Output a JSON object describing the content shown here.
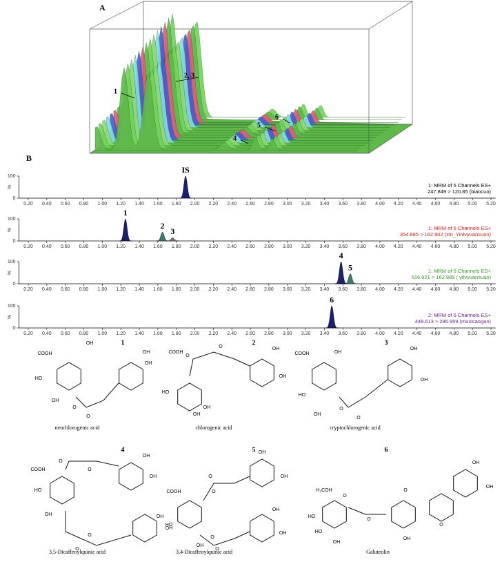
{
  "panel_a": {
    "label": "A",
    "peak_labels": [
      "1",
      "2, 3",
      "4",
      "5",
      "6"
    ]
  },
  "panel_b": {
    "label": "B"
  },
  "chart_data": [
    {
      "type": "chromatogram",
      "header": [
        "1: MRM of 5 Channels ES+",
        "247.849 > 120.85 (biaocuo)"
      ],
      "header_color": "#000000",
      "y_label": "%",
      "ylim": [
        0,
        100
      ],
      "yticks": [
        0,
        100
      ],
      "xlim": [
        0.1,
        5.25
      ],
      "xticks": [
        {
          "value": 0.2,
          "label": "0.20"
        },
        {
          "value": 0.4,
          "label": "0.40"
        },
        {
          "value": 0.6,
          "label": "0.60"
        },
        {
          "value": 0.8,
          "label": "0.80"
        },
        {
          "value": 1.0,
          "label": "1.00"
        },
        {
          "value": 1.2,
          "label": "1.20"
        },
        {
          "value": 1.4,
          "label": "1.40"
        },
        {
          "value": 1.6,
          "label": "1.60"
        },
        {
          "value": 1.8,
          "label": "1.80"
        },
        {
          "value": 2.0,
          "label": "2.00"
        },
        {
          "value": 2.2,
          "label": "2.20"
        },
        {
          "value": 2.4,
          "label": "2.40"
        },
        {
          "value": 2.6,
          "label": "2.60"
        },
        {
          "value": 2.8,
          "label": "2.80"
        },
        {
          "value": 3.0,
          "label": "3.00"
        },
        {
          "value": 3.2,
          "label": "3.20"
        },
        {
          "value": 3.4,
          "label": "3.40"
        },
        {
          "value": 3.6,
          "label": "3.60"
        },
        {
          "value": 3.8,
          "label": "3.80"
        },
        {
          "value": 4.0,
          "label": "4.00"
        },
        {
          "value": 4.2,
          "label": "4.20"
        },
        {
          "value": 4.4,
          "label": "4.40"
        },
        {
          "value": 4.6,
          "label": "4.60"
        },
        {
          "value": 4.8,
          "label": "4.80"
        },
        {
          "value": 5.0,
          "label": "5.00"
        },
        {
          "value": 5.2,
          "label": "5.20"
        }
      ],
      "peaks": [
        {
          "label": "IS",
          "x": 1.9,
          "height": 100,
          "color": "#1c1f6e"
        }
      ]
    },
    {
      "type": "chromatogram",
      "header": [
        "1: MRM of 5 Channels ES+",
        "354.885 > 162.902 (xin_Yinlvyuansuan)"
      ],
      "header_color": "#d62020",
      "y_label": "%",
      "ylim": [
        0,
        100
      ],
      "yticks": [
        0,
        100
      ],
      "xlim": [
        0.1,
        5.25
      ],
      "xticks": [
        {
          "value": 0.2,
          "label": "0.20"
        },
        {
          "value": 0.4,
          "label": "0.40"
        },
        {
          "value": 0.6,
          "label": "0.60"
        },
        {
          "value": 0.8,
          "label": "0.80"
        },
        {
          "value": 1.0,
          "label": "1.00"
        },
        {
          "value": 1.2,
          "label": "1.20"
        },
        {
          "value": 1.4,
          "label": "1.40"
        },
        {
          "value": 1.6,
          "label": "1.60"
        },
        {
          "value": 1.8,
          "label": "1.80"
        },
        {
          "value": 2.0,
          "label": "2.00"
        },
        {
          "value": 2.2,
          "label": "2.20"
        },
        {
          "value": 2.4,
          "label": "2.40"
        },
        {
          "value": 2.6,
          "label": "2.60"
        },
        {
          "value": 2.8,
          "label": "2.80"
        },
        {
          "value": 3.0,
          "label": "3.00"
        },
        {
          "value": 3.2,
          "label": "3.20"
        },
        {
          "value": 3.4,
          "label": "3.40"
        },
        {
          "value": 3.6,
          "label": "3.60"
        },
        {
          "value": 3.8,
          "label": "3.80"
        },
        {
          "value": 4.0,
          "label": "4.00"
        },
        {
          "value": 4.2,
          "label": "4.20"
        },
        {
          "value": 4.4,
          "label": "4.40"
        },
        {
          "value": 4.6,
          "label": "4.60"
        },
        {
          "value": 4.8,
          "label": "4.80"
        },
        {
          "value": 5.0,
          "label": "5.00"
        },
        {
          "value": 5.2,
          "label": "5.20"
        }
      ],
      "peaks": [
        {
          "label": "1",
          "x": 1.25,
          "height": 100,
          "color": "#1c1f6e"
        },
        {
          "label": "2",
          "x": 1.65,
          "height": 40,
          "color": "#3c7a6e"
        },
        {
          "label": "3",
          "x": 1.76,
          "height": 15,
          "color": "#7a7a7a"
        }
      ]
    },
    {
      "type": "chromatogram",
      "header": [
        "1: MRM of 5 Channels ES+",
        "516.921 > 162.889 ( yilvyuansuan)"
      ],
      "header_color": "#3a9a2a",
      "y_label": "%",
      "ylim": [
        0,
        100
      ],
      "yticks": [
        0,
        100
      ],
      "xlim": [
        0.1,
        5.25
      ],
      "xticks": [
        {
          "value": 0.2,
          "label": "0.20"
        },
        {
          "value": 0.4,
          "label": "0.40"
        },
        {
          "value": 0.6,
          "label": "0.60"
        },
        {
          "value": 0.8,
          "label": "0.80"
        },
        {
          "value": 1.0,
          "label": "1.00"
        },
        {
          "value": 1.2,
          "label": "1.20"
        },
        {
          "value": 1.4,
          "label": "1.40"
        },
        {
          "value": 1.6,
          "label": "1.60"
        },
        {
          "value": 1.8,
          "label": "1.80"
        },
        {
          "value": 2.0,
          "label": "2.00"
        },
        {
          "value": 2.2,
          "label": "2.20"
        },
        {
          "value": 2.4,
          "label": "2.40"
        },
        {
          "value": 2.6,
          "label": "2.60"
        },
        {
          "value": 2.8,
          "label": "2.80"
        },
        {
          "value": 3.0,
          "label": "3.00"
        },
        {
          "value": 3.2,
          "label": "3.20"
        },
        {
          "value": 3.4,
          "label": "3.40"
        },
        {
          "value": 3.6,
          "label": "3.60"
        },
        {
          "value": 3.8,
          "label": "3.80"
        },
        {
          "value": 4.0,
          "label": "4.00"
        },
        {
          "value": 4.2,
          "label": "4.20"
        },
        {
          "value": 4.4,
          "label": "4.40"
        },
        {
          "value": 4.6,
          "label": "4.60"
        },
        {
          "value": 4.8,
          "label": "4.80"
        },
        {
          "value": 5.0,
          "label": "5.00"
        },
        {
          "value": 5.2,
          "label": "5.20"
        }
      ],
      "peaks": [
        {
          "label": "4",
          "x": 3.58,
          "height": 100,
          "color": "#1c1f6e"
        },
        {
          "label": "5",
          "x": 3.68,
          "height": 45,
          "color": "#3c7a6e"
        }
      ]
    },
    {
      "type": "chromatogram",
      "header": [
        "2: MRM of 5 Channels ES+",
        "448.613 > 286.959 (muxicaogan)"
      ],
      "header_color": "#6a2a8a",
      "y_label": "%",
      "ylim": [
        0,
        100
      ],
      "yticks": [
        0,
        100
      ],
      "xlim": [
        0.1,
        5.25
      ],
      "xticks": [
        {
          "value": 0.2,
          "label": "0.20"
        },
        {
          "value": 0.4,
          "label": "0.40"
        },
        {
          "value": 0.6,
          "label": "0.60"
        },
        {
          "value": 0.8,
          "label": "0.80"
        },
        {
          "value": 1.0,
          "label": "1.00"
        },
        {
          "value": 1.2,
          "label": "1.20"
        },
        {
          "value": 1.4,
          "label": "1.40"
        },
        {
          "value": 1.6,
          "label": "1.60"
        },
        {
          "value": 1.8,
          "label": "1.80"
        },
        {
          "value": 2.0,
          "label": "2.00"
        },
        {
          "value": 2.2,
          "label": "2.20"
        },
        {
          "value": 2.4,
          "label": "2.40"
        },
        {
          "value": 2.6,
          "label": "2.60"
        },
        {
          "value": 2.8,
          "label": "2.80"
        },
        {
          "value": 3.0,
          "label": "3.00"
        },
        {
          "value": 3.2,
          "label": "3.20"
        },
        {
          "value": 3.4,
          "label": "3.40"
        },
        {
          "value": 3.6,
          "label": "3.60"
        },
        {
          "value": 3.8,
          "label": "3.80"
        },
        {
          "value": 4.0,
          "label": "4.00"
        },
        {
          "value": 4.2,
          "label": "4.20"
        },
        {
          "value": 4.4,
          "label": "4.40"
        },
        {
          "value": 4.6,
          "label": "4.60"
        },
        {
          "value": 4.8,
          "label": "4.80"
        },
        {
          "value": 5.0,
          "label": "5.00"
        },
        {
          "value": 5.2,
          "label": "5.20"
        }
      ],
      "peaks": [
        {
          "label": "6",
          "x": 3.48,
          "height": 100,
          "color": "#1c1f6e"
        }
      ]
    }
  ],
  "structures": [
    {
      "number": "1",
      "name": "neochlorogenic acid",
      "atoms": [
        "COOH",
        "OH",
        "HO",
        "OH",
        "O",
        "O",
        "OH",
        "OH"
      ]
    },
    {
      "number": "2",
      "name": "chlorogenic acid",
      "atoms": [
        "COOH",
        "HO",
        "OH",
        "OH",
        "O",
        "O",
        "OH",
        "OH"
      ]
    },
    {
      "number": "3",
      "name": "cryptochlorogenic acid",
      "atoms": [
        "COOH",
        "OH",
        "HO",
        "OH",
        "O",
        "O",
        "OH",
        "OH"
      ]
    },
    {
      "number": "4",
      "name": "3,5-Dicaffeoylquinic acid",
      "atoms": [
        "COOH",
        "HO",
        "OH",
        "O",
        "O",
        "O",
        "O",
        "OH",
        "OH",
        "OH",
        "OH"
      ]
    },
    {
      "number": "5",
      "name": "3,4-Dicaffeoylquinic acid",
      "atoms": [
        "COOH",
        "HO",
        "OH",
        "O",
        "O",
        "O",
        "O",
        "OH",
        "OH",
        "OH",
        "OH"
      ]
    },
    {
      "number": "6",
      "name": "Galuteolin",
      "atoms": [
        "H₂COH",
        "HO",
        "HO",
        "OH",
        "O",
        "O",
        "O",
        "OH",
        "O",
        "OH",
        "OH"
      ]
    }
  ]
}
